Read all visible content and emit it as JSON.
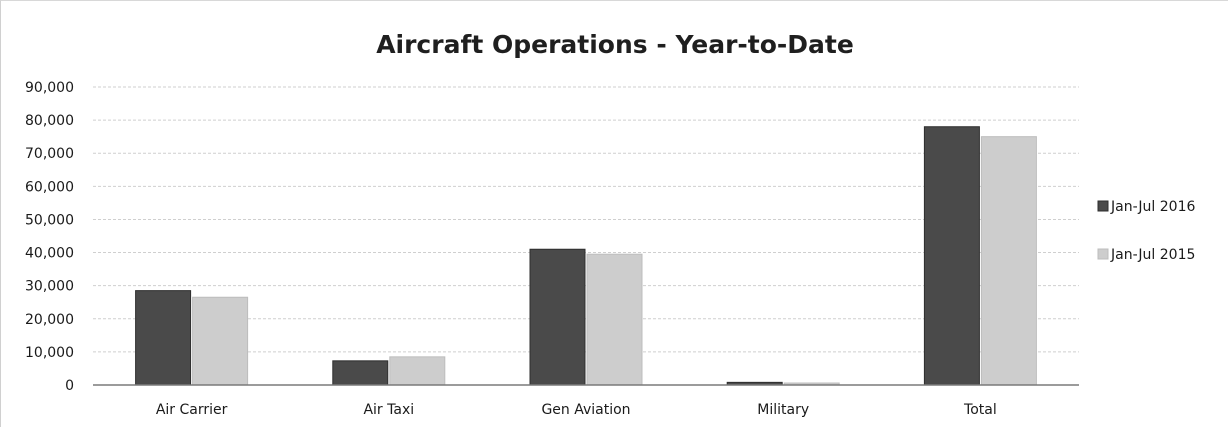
{
  "chart_data": {
    "type": "bar",
    "title": "Aircraft Operations - Year-to-Date",
    "xlabel": "",
    "ylabel": "",
    "ylim": [
      0,
      90000
    ],
    "yticks": [
      0,
      10000,
      20000,
      30000,
      40000,
      50000,
      60000,
      70000,
      80000,
      90000
    ],
    "ytick_labels": [
      "0",
      "10,000",
      "20,000",
      "30,000",
      "40,000",
      "50,000",
      "60,000",
      "70,000",
      "80,000",
      "90,000"
    ],
    "categories": [
      "Air Carrier",
      "Air Taxi",
      "Gen Aviation",
      "Military",
      "Total"
    ],
    "series": [
      {
        "name": "Jan-Jul 2016",
        "color": "#4a4a4a",
        "values": [
          28500,
          7300,
          41000,
          800,
          78000
        ]
      },
      {
        "name": "Jan-Jul 2015",
        "color": "#cdcdcd",
        "values": [
          26500,
          8500,
          39500,
          600,
          75000
        ]
      }
    ],
    "grid": true,
    "legend_position": "right"
  }
}
